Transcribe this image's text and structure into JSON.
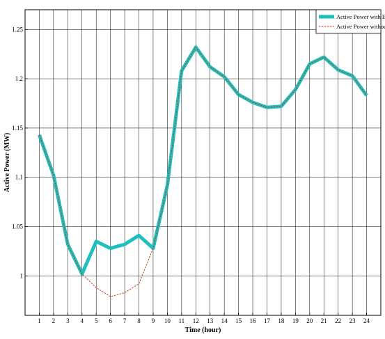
{
  "chart_data": {
    "type": "line",
    "title": "",
    "xlabel": "Time (hour)",
    "ylabel": "Active Power (MW)",
    "x": [
      1,
      2,
      3,
      4,
      5,
      6,
      7,
      8,
      9,
      10,
      11,
      12,
      13,
      14,
      15,
      16,
      17,
      18,
      19,
      20,
      21,
      22,
      23,
      24
    ],
    "xlim": [
      0,
      25
    ],
    "ylim": [
      0.96,
      1.27
    ],
    "yticks": [
      1,
      1.05,
      1.1,
      1.15,
      1.2,
      1.25
    ],
    "ytick_labels": [
      "1",
      "1.05",
      "1.1",
      "1.15",
      "1.2",
      "1.25"
    ],
    "grid": true,
    "legend_position": "top-right",
    "series": [
      {
        "name": "Active Power with EV",
        "color": "#1fbfbf",
        "style": "thick-solid",
        "values": [
          1.143,
          1.102,
          1.032,
          1.002,
          1.035,
          1.028,
          1.032,
          1.041,
          1.028,
          1.092,
          1.208,
          1.232,
          1.212,
          1.202,
          1.184,
          1.176,
          1.171,
          1.172,
          1.189,
          1.215,
          1.222,
          1.209,
          1.203,
          1.183
        ]
      },
      {
        "name": "Active Power without EV",
        "color": "#c0401a",
        "style": "dashed",
        "values": [
          1.143,
          1.102,
          1.032,
          1.002,
          0.988,
          0.979,
          0.983,
          0.992,
          1.028,
          1.092,
          1.208,
          1.232,
          1.212,
          1.202,
          1.184,
          1.176,
          1.171,
          1.172,
          1.189,
          1.215,
          1.222,
          1.209,
          1.203,
          1.183
        ]
      }
    ]
  }
}
